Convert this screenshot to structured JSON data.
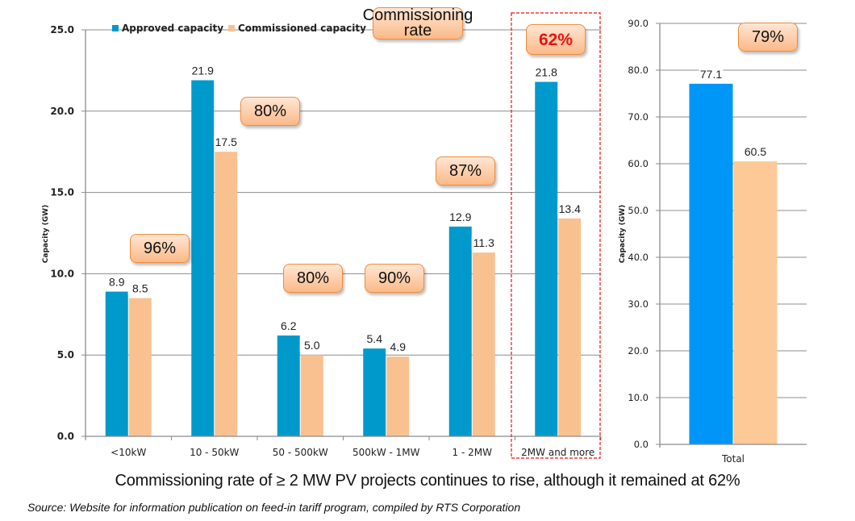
{
  "chart_data": [
    {
      "type": "bar",
      "title": "",
      "xlabel": "",
      "ylabel": "Capacity (GW)",
      "ylim": [
        0,
        25
      ],
      "yticks": [
        "0.0",
        "5.0",
        "10.0",
        "15.0",
        "20.0",
        "25.0"
      ],
      "grid": true,
      "legend_position": "top",
      "categories": [
        "<10kW",
        "10 - 50kW",
        "50 - 500kW",
        "500kW - 1MW",
        "1 - 2MW",
        "2MW and more"
      ],
      "series": [
        {
          "name": "Approved capacity",
          "color": "#0099cc",
          "values": [
            8.9,
            21.9,
            6.2,
            5.4,
            12.9,
            21.8
          ],
          "labels": [
            "8.9",
            "21.9",
            "6.2",
            "5.4",
            "12.9",
            "21.8"
          ]
        },
        {
          "name": "Commissioned capacity",
          "color": "#f9c190",
          "values": [
            8.5,
            17.5,
            5.0,
            4.9,
            11.3,
            13.4
          ],
          "labels": [
            "8.5",
            "17.5",
            "5.0",
            "4.9",
            "11.3",
            "13.4"
          ]
        }
      ],
      "annotations": {
        "header": "Commissioning rate",
        "rates": [
          "96%",
          "80%",
          "80%",
          "90%",
          "87%",
          "62%"
        ],
        "highlighted_category": "2MW and more"
      }
    },
    {
      "type": "bar",
      "title": "",
      "xlabel": "",
      "ylabel": "Capacity (GW)",
      "ylim": [
        0,
        90
      ],
      "yticks": [
        "0.0",
        "10.0",
        "20.0",
        "30.0",
        "40.0",
        "50.0",
        "60.0",
        "70.0",
        "80.0",
        "90.0"
      ],
      "grid": true,
      "categories": [
        "Total"
      ],
      "series": [
        {
          "name": "Approved capacity",
          "color": "#0096f8",
          "values": [
            77.1
          ],
          "labels": [
            "77.1"
          ]
        },
        {
          "name": "Commissioned capacity",
          "color": "#fdc996",
          "values": [
            60.5
          ],
          "labels": [
            "60.5"
          ]
        }
      ],
      "annotations": {
        "rates": [
          "79%"
        ]
      }
    }
  ],
  "caption": "Commissioning rate of ≥ 2 MW PV projects continues to rise, although it remained at 62%",
  "source": "Source: Website for information publication on feed-in tariff program, compiled by RTS Corporation",
  "colors": {
    "highlight_box": "#ee1111",
    "rate_border": "#f08c3c"
  }
}
